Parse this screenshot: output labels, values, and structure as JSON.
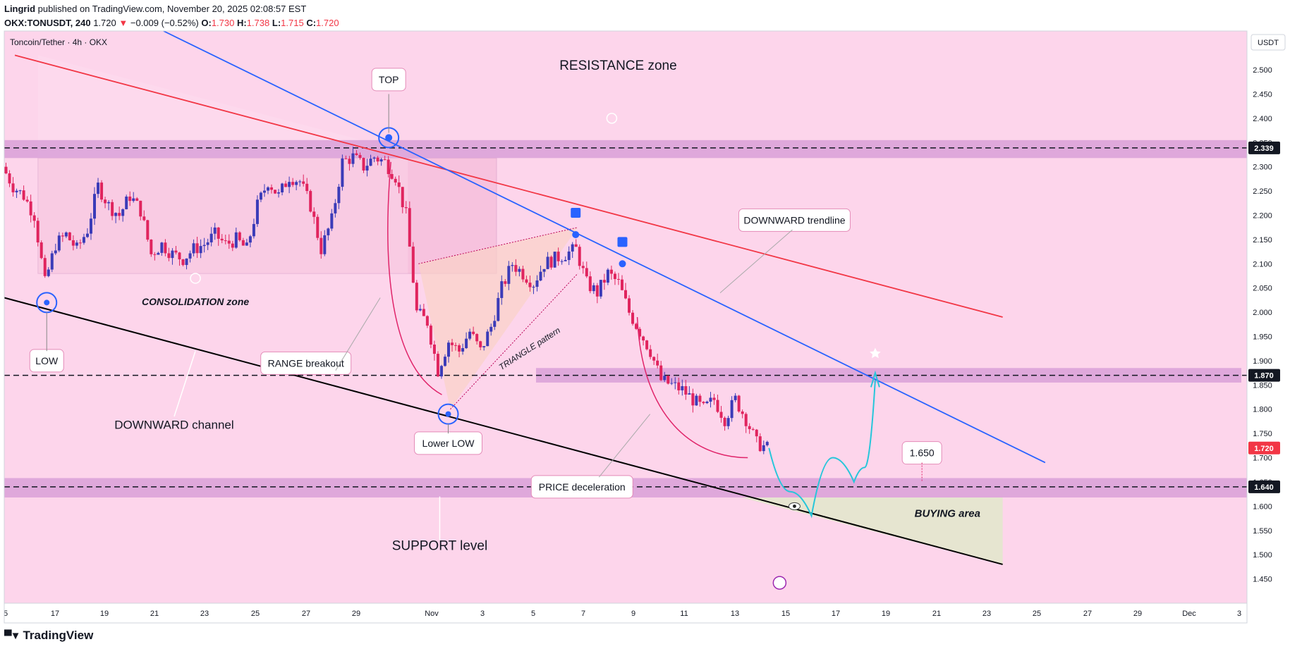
{
  "header": {
    "author": "Lingrid",
    "published": "published on TradingView.com, November 20, 2025 02:08:57 EST",
    "symbol": "OKX:TONUSDT, 240",
    "last": "1.720",
    "arrow": "▼",
    "change": "−0.009 (−0.52%)",
    "o_label": "O:",
    "o": "1.730",
    "h_label": "H:",
    "h": "1.738",
    "l_label": "L:",
    "l": "1.715",
    "c_label": "C:",
    "c": "1.720"
  },
  "pane_title": "Toncoin/Tether · 4h · OKX",
  "currency": "USDT",
  "branding": "TradingView",
  "colors": {
    "bg": "#fdd5eb",
    "zone": "#d9a0d8",
    "up": "#3b3bb8",
    "down": "#e0245e",
    "red_line": "#f23645",
    "blue_line": "#2962ff",
    "projection": "#26c6da",
    "buying_area": "#e6e5d0"
  },
  "chart_data": {
    "type": "candlestick",
    "symbol": "TONUSDT",
    "timeframe": "4h",
    "ylim": [
      1.4,
      2.58
    ],
    "y_ticks": [
      "2.500",
      "2.450",
      "2.400",
      "2.350",
      "2.300",
      "2.250",
      "2.200",
      "2.150",
      "2.100",
      "2.050",
      "2.000",
      "1.950",
      "1.900",
      "1.850",
      "1.800",
      "1.750",
      "1.700",
      "1.650",
      "1.600",
      "1.550",
      "1.500",
      "1.450"
    ],
    "x_ticks": [
      "5",
      "17",
      "19",
      "21",
      "23",
      "25",
      "27",
      "29",
      "Nov",
      "3",
      "5",
      "7",
      "9",
      "11",
      "13",
      "15",
      "17",
      "19",
      "21",
      "23",
      "25",
      "27",
      "29",
      "Dec",
      "3"
    ],
    "price_badges": [
      {
        "value": "2.339",
        "kind": "level"
      },
      {
        "value": "1.870",
        "kind": "level"
      },
      {
        "value": "1.720",
        "kind": "last"
      },
      {
        "value": "1.640",
        "kind": "level"
      }
    ],
    "levels": [
      2.339,
      1.87,
      1.64
    ],
    "close_path": [
      [
        15.0,
        2.3
      ],
      [
        15.5,
        2.26
      ],
      [
        16.0,
        2.24
      ],
      [
        16.5,
        2.2
      ],
      [
        17.0,
        2.06
      ],
      [
        17.5,
        2.14
      ],
      [
        18.0,
        2.16
      ],
      [
        18.5,
        2.13
      ],
      [
        19.0,
        2.17
      ],
      [
        19.5,
        2.26
      ],
      [
        20.0,
        2.22
      ],
      [
        20.5,
        2.2
      ],
      [
        21.0,
        2.24
      ],
      [
        21.5,
        2.21
      ],
      [
        22.0,
        2.12
      ],
      [
        22.5,
        2.14
      ],
      [
        23.0,
        2.12
      ],
      [
        23.5,
        2.11
      ],
      [
        24.0,
        2.13
      ],
      [
        24.5,
        2.14
      ],
      [
        25.0,
        2.16
      ],
      [
        25.5,
        2.14
      ],
      [
        26.0,
        2.15
      ],
      [
        26.5,
        2.13
      ],
      [
        27.0,
        2.22
      ],
      [
        27.5,
        2.27
      ],
      [
        28.0,
        2.24
      ],
      [
        28.5,
        2.28
      ],
      [
        29.0,
        2.27
      ],
      [
        29.5,
        2.22
      ],
      [
        30.0,
        2.13
      ],
      [
        30.5,
        2.19
      ],
      [
        31.0,
        2.31
      ],
      [
        31.5,
        2.32
      ],
      [
        32.0,
        2.3
      ],
      [
        32.5,
        2.32
      ],
      [
        33.0,
        2.31
      ],
      [
        33.5,
        2.28
      ],
      [
        34.0,
        2.2
      ],
      [
        34.5,
        2.0
      ],
      [
        35.0,
        1.98
      ],
      [
        35.5,
        1.88
      ],
      [
        36.0,
        1.94
      ],
      [
        36.5,
        1.92
      ],
      [
        37.0,
        1.96
      ],
      [
        37.5,
        1.92
      ],
      [
        38.0,
        1.97
      ],
      [
        38.5,
        2.05
      ],
      [
        39.0,
        2.1
      ],
      [
        39.5,
        2.08
      ],
      [
        40.0,
        2.06
      ],
      [
        40.5,
        2.1
      ],
      [
        41.0,
        2.11
      ],
      [
        41.5,
        2.12
      ],
      [
        42.0,
        2.13
      ],
      [
        42.5,
        2.06
      ],
      [
        43.0,
        2.04
      ],
      [
        43.5,
        2.08
      ],
      [
        44.0,
        2.06
      ],
      [
        44.5,
        2.0
      ],
      [
        45.0,
        1.96
      ],
      [
        45.5,
        1.92
      ],
      [
        46.0,
        1.86
      ],
      [
        46.5,
        1.85
      ],
      [
        47.0,
        1.84
      ],
      [
        47.5,
        1.82
      ],
      [
        48.0,
        1.8
      ],
      [
        48.5,
        1.82
      ],
      [
        49.0,
        1.78
      ],
      [
        49.5,
        1.82
      ],
      [
        50.0,
        1.78
      ],
      [
        50.5,
        1.73
      ],
      [
        51.0,
        1.72
      ]
    ],
    "trendlines": [
      {
        "name": "red-resistance",
        "points": [
          [
            15.5,
            2.53
          ],
          [
            62,
            1.99
          ]
        ]
      },
      {
        "name": "blue-downward",
        "points": [
          [
            22.5,
            2.58
          ],
          [
            64,
            1.69
          ]
        ]
      },
      {
        "name": "channel-support",
        "points": [
          [
            15.0,
            2.03
          ],
          [
            62,
            1.48
          ]
        ]
      }
    ],
    "projection_path": [
      [
        51,
        1.72
      ],
      [
        52,
        1.63
      ],
      [
        53,
        1.58
      ],
      [
        54,
        1.7
      ],
      [
        55,
        1.65
      ],
      [
        55.5,
        1.68
      ],
      [
        56,
        1.86
      ]
    ],
    "markers": [
      {
        "text": "TOP",
        "x": 33.1,
        "y": 2.36
      },
      {
        "text": "LOW",
        "x": 17.0,
        "y": 2.02
      },
      {
        "text": "Lower LOW",
        "x": 35.9,
        "y": 1.79
      }
    ],
    "annotations": [
      "RESISTANCE zone",
      "CONSOLIDATION zone",
      "RANGE breakout",
      "DOWNWARD channel",
      "TRIANGLE pattern",
      "DOWNWARD trendline",
      "PRICE deceleration",
      "SUPPORT level",
      "BUYING area",
      "1.650"
    ]
  }
}
